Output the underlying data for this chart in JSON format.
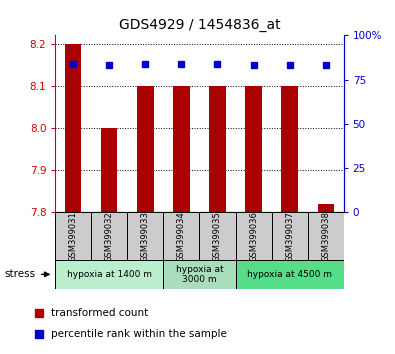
{
  "title": "GDS4929 / 1454836_at",
  "samples": [
    "GSM399031",
    "GSM399032",
    "GSM399033",
    "GSM399034",
    "GSM399035",
    "GSM399036",
    "GSM399037",
    "GSM399038"
  ],
  "bar_values": [
    8.2,
    8.0,
    8.1,
    8.1,
    8.1,
    8.1,
    8.1,
    7.82
  ],
  "percentile_values": [
    84,
    83,
    84,
    84,
    84,
    83,
    83,
    83
  ],
  "ylim": [
    7.8,
    8.22
  ],
  "yticks_left": [
    7.8,
    7.9,
    8.0,
    8.1,
    8.2
  ],
  "yticks_right": [
    0,
    25,
    50,
    75,
    100
  ],
  "bar_color": "#aa0000",
  "dot_color": "#0000cc",
  "bar_bottom": 7.8,
  "groups": [
    {
      "label": "hypoxia at 1400 m",
      "start": 0,
      "end": 3,
      "color": "#bbeecc"
    },
    {
      "label": "hypoxia at\n3000 m",
      "start": 3,
      "end": 5,
      "color": "#aaddbb"
    },
    {
      "label": "hypoxia at 4500 m",
      "start": 5,
      "end": 8,
      "color": "#55dd88"
    }
  ],
  "stress_label": "stress",
  "legend_bar_label": "transformed count",
  "legend_dot_label": "percentile rank within the sample",
  "title_color": "#000000",
  "left_axis_color": "#cc0000",
  "right_axis_color": "#0000cc",
  "grid_color": "#000000",
  "sample_area_color": "#cccccc",
  "bar_width": 0.45
}
